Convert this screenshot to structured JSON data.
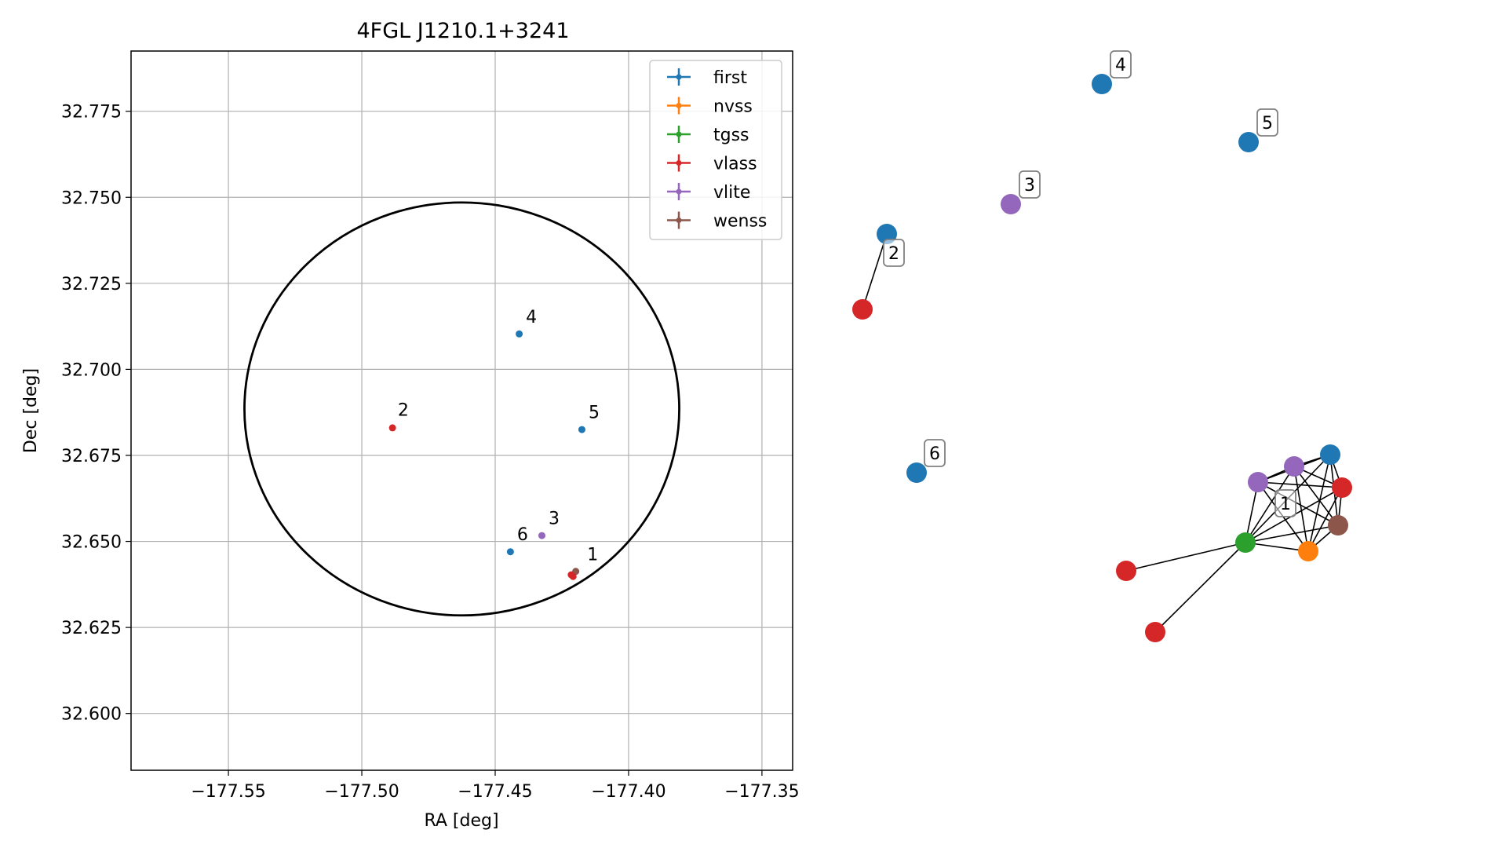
{
  "chart_data": [
    {
      "type": "scatter",
      "title": "4FGL J1210.1+3241",
      "xlabel": "RA [deg]",
      "ylabel": "Dec [deg]",
      "xlim": [
        -177.5865,
        -177.3385
      ],
      "ylim": [
        32.5835,
        32.7925
      ],
      "xticks": [
        -177.55,
        -177.5,
        -177.45,
        -177.4,
        -177.35
      ],
      "xtick_labels": [
        "−177.55",
        "−177.50",
        "−177.45",
        "−177.40",
        "−177.35"
      ],
      "yticks": [
        32.6,
        32.625,
        32.65,
        32.675,
        32.7,
        32.725,
        32.75,
        32.775
      ],
      "ytick_labels": [
        "32.600",
        "32.625",
        "32.650",
        "32.675",
        "32.700",
        "32.725",
        "32.750",
        "32.775"
      ],
      "grid": true,
      "legend_position": "top-right",
      "legend": [
        {
          "name": "first",
          "color": "#1f77b4"
        },
        {
          "name": "nvss",
          "color": "#ff7f0e"
        },
        {
          "name": "tgss",
          "color": "#2ca02c"
        },
        {
          "name": "vlass",
          "color": "#d62728"
        },
        {
          "name": "vlite",
          "color": "#9467bd"
        },
        {
          "name": "wenss",
          "color": "#8c564b"
        }
      ],
      "ellipse": {
        "center_ra": -177.4625,
        "center_dec": 32.6885,
        "half_width_ra": 0.0815,
        "half_height_dec": 0.06,
        "color": "#000000"
      },
      "points": [
        {
          "ra": -177.4198,
          "dec": 32.6413,
          "color": "#8c564b"
        },
        {
          "ra": -177.4215,
          "dec": 32.6403,
          "color": "#d62728"
        },
        {
          "ra": -177.4208,
          "dec": 32.6398,
          "color": "#d62728"
        },
        {
          "ra": -177.441,
          "dec": 32.7103,
          "color": "#1f77b4"
        },
        {
          "ra": -177.4885,
          "dec": 32.683,
          "color": "#d62728"
        },
        {
          "ra": -177.4175,
          "dec": 32.6825,
          "color": "#1f77b4"
        },
        {
          "ra": -177.4325,
          "dec": 32.6517,
          "color": "#9467bd"
        },
        {
          "ra": -177.4443,
          "dec": 32.647,
          "color": "#1f77b4"
        }
      ],
      "labels": [
        {
          "text": "1",
          "ra": -177.4155,
          "dec": 32.6445
        },
        {
          "text": "2",
          "ra": -177.4865,
          "dec": 32.6865
        },
        {
          "text": "3",
          "ra": -177.43,
          "dec": 32.655
        },
        {
          "text": "4",
          "ra": -177.4385,
          "dec": 32.7135
        },
        {
          "text": "5",
          "ra": -177.415,
          "dec": 32.6858
        },
        {
          "text": "6",
          "ra": -177.4418,
          "dec": 32.6503
        }
      ]
    },
    {
      "type": "network",
      "nodes": [
        {
          "id": "a",
          "color": "#1f77b4",
          "label": "4"
        },
        {
          "id": "b",
          "color": "#1f77b4",
          "label": "5"
        },
        {
          "id": "c",
          "color": "#9467bd",
          "label": "3"
        },
        {
          "id": "d",
          "color": "#1f77b4",
          "label": "2"
        },
        {
          "id": "e",
          "color": "#d62728",
          "label": ""
        },
        {
          "id": "f",
          "color": "#1f77b4",
          "label": "6"
        },
        {
          "id": "g",
          "color": "#1f77b4",
          "label": ""
        },
        {
          "id": "h",
          "color": "#9467bd",
          "label": ""
        },
        {
          "id": "i",
          "color": "#9467bd",
          "label": "1"
        },
        {
          "id": "j",
          "color": "#d62728",
          "label": ""
        },
        {
          "id": "k",
          "color": "#8c564b",
          "label": ""
        },
        {
          "id": "l",
          "color": "#ff7f0e",
          "label": ""
        },
        {
          "id": "m",
          "color": "#2ca02c",
          "label": ""
        },
        {
          "id": "n",
          "color": "#d62728",
          "label": ""
        },
        {
          "id": "o",
          "color": "#d62728",
          "label": ""
        }
      ],
      "edges": [
        [
          "d",
          "e"
        ],
        [
          "g",
          "h"
        ],
        [
          "g",
          "i"
        ],
        [
          "g",
          "j"
        ],
        [
          "g",
          "k"
        ],
        [
          "g",
          "l"
        ],
        [
          "g",
          "m"
        ],
        [
          "h",
          "i"
        ],
        [
          "h",
          "j"
        ],
        [
          "h",
          "k"
        ],
        [
          "h",
          "l"
        ],
        [
          "h",
          "m"
        ],
        [
          "i",
          "j"
        ],
        [
          "i",
          "k"
        ],
        [
          "i",
          "l"
        ],
        [
          "i",
          "m"
        ],
        [
          "j",
          "k"
        ],
        [
          "j",
          "l"
        ],
        [
          "j",
          "m"
        ],
        [
          "k",
          "l"
        ],
        [
          "k",
          "m"
        ],
        [
          "l",
          "m"
        ],
        [
          "m",
          "n"
        ],
        [
          "m",
          "o"
        ]
      ]
    }
  ]
}
